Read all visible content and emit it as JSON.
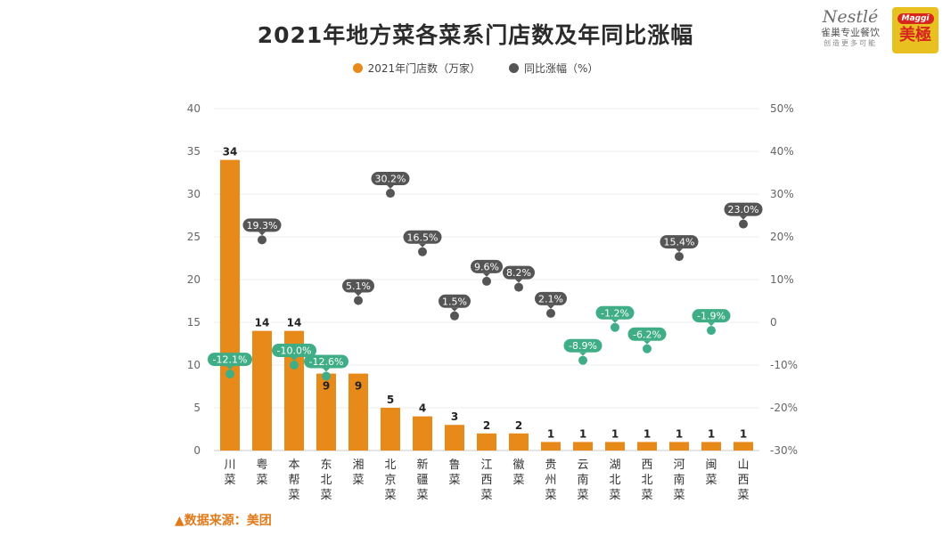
{
  "header": {
    "title": "2021年地方菜各菜系门店数及年同比涨幅"
  },
  "legend": {
    "bar_label": "2021年门店数（万家）",
    "dot_label": "同比涨幅（%）"
  },
  "colors": {
    "bar": "#e88a1a",
    "dot_positive": "#555555",
    "dot_negative": "#3fae86",
    "grid": "#eeeeee"
  },
  "footer": {
    "source": "▲数据来源：美团"
  },
  "brand": {
    "nestle": "Nestlé",
    "nestle_cn": "雀巢专业餐饮",
    "nestle_slogan": "创造更多可能",
    "maggi": "Maggi",
    "maggi_cn": "美極"
  },
  "chart_data": {
    "type": "bar",
    "title": "2021年地方菜各菜系门店数及年同比涨幅",
    "categories": [
      "川菜",
      "粤菜",
      "本帮菜",
      "东北菜",
      "湘菜",
      "北京菜",
      "新疆菜",
      "鲁菜",
      "江西菜",
      "徽菜",
      "贵州菜",
      "云南菜",
      "湖北菜",
      "西北菜",
      "河南菜",
      "闽菜",
      "山西菜"
    ],
    "series": [
      {
        "name": "2021年门店数（万家）",
        "type": "bar",
        "axis": "left",
        "values": [
          34,
          14,
          14,
          9,
          9,
          5,
          4,
          3,
          2,
          2,
          1,
          1,
          1,
          1,
          1,
          1,
          1
        ]
      },
      {
        "name": "同比涨幅（%）",
        "type": "scatter",
        "axis": "right",
        "values": [
          -12.1,
          19.3,
          -10.0,
          -12.6,
          5.1,
          30.2,
          16.5,
          1.5,
          9.6,
          8.2,
          2.1,
          -8.9,
          -1.2,
          -6.2,
          15.4,
          -1.9,
          23.0
        ],
        "labels": [
          "-12.1%",
          "19.3%",
          "-10.0%",
          "-12.6%",
          "5.1%",
          "30.2%",
          "16.5%",
          "1.5%",
          "9.6%",
          "8.2%",
          "2.1%",
          "-8.9%",
          "-1.2%",
          "-6.2%",
          "15.4%",
          "-1.9%",
          "23.0%"
        ]
      }
    ],
    "ylim_left": [
      0,
      40
    ],
    "yticks_left": [
      "0",
      "5",
      "10",
      "15",
      "20",
      "25",
      "30",
      "35",
      "40"
    ],
    "ylim_right": [
      -30,
      50
    ],
    "yticks_right": [
      "-30%",
      "-20%",
      "-10%",
      "0",
      "10%",
      "20%",
      "30%",
      "40%",
      "50%"
    ],
    "grid": true,
    "legend_position": "top-center"
  }
}
